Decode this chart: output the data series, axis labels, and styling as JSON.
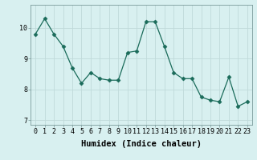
{
  "x": [
    0,
    1,
    2,
    3,
    4,
    5,
    6,
    7,
    8,
    9,
    10,
    11,
    12,
    13,
    14,
    15,
    16,
    17,
    18,
    19,
    20,
    21,
    22,
    23
  ],
  "y": [
    9.8,
    10.3,
    9.8,
    9.4,
    8.7,
    8.2,
    8.55,
    8.35,
    8.3,
    8.3,
    9.2,
    9.25,
    10.2,
    10.2,
    9.4,
    8.55,
    8.35,
    8.35,
    7.75,
    7.65,
    7.6,
    8.4,
    7.45,
    7.6
  ],
  "xlabel": "Humidex (Indice chaleur)",
  "ylim": [
    6.85,
    10.75
  ],
  "yticks": [
    7,
    8,
    9,
    10
  ],
  "xlim": [
    -0.5,
    23.5
  ],
  "line_color": "#1a6b5a",
  "marker": "D",
  "marker_size": 2.5,
  "bg_color": "#d8f0f0",
  "grid_color": "#c0dada",
  "xlabel_fontsize": 7.5,
  "tick_fontsize": 6
}
